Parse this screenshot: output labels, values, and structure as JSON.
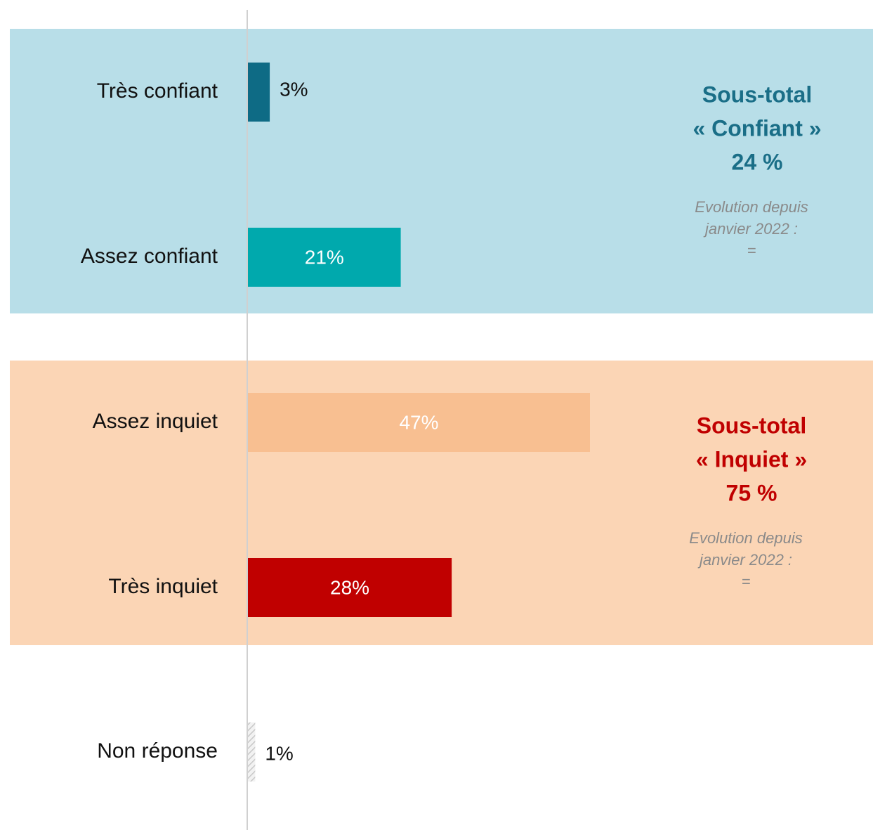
{
  "chart_data": {
    "type": "bar",
    "orientation": "horizontal",
    "categories": [
      "Très confiant",
      "Assez confiant",
      "Assez inquiet",
      "Très inquiet",
      "Non réponse"
    ],
    "values": [
      3,
      21,
      47,
      28,
      1
    ],
    "value_labels": [
      "3%",
      "21%",
      "47%",
      "28%",
      "1%"
    ],
    "colors": [
      "#0e6b85",
      "#00a9ad",
      "#f8bf91",
      "#c00000",
      "#c8c8c8"
    ],
    "hatched": [
      false,
      false,
      false,
      false,
      true
    ],
    "groups": [
      {
        "color": "#b8dee8",
        "text_color": "#1a6e87",
        "lines": [
          "Sous-total",
          "« Confiant »",
          "24 %"
        ],
        "note": [
          "Evolution depuis",
          "janvier 2022 :",
          "="
        ]
      },
      {
        "color": "#fbd5b5",
        "text_color": "#c00000",
        "lines": [
          "Sous-total",
          "« Inquiet »",
          "75 %"
        ],
        "note": [
          "Evolution depuis",
          "janvier 2022 :",
          "="
        ]
      }
    ]
  }
}
